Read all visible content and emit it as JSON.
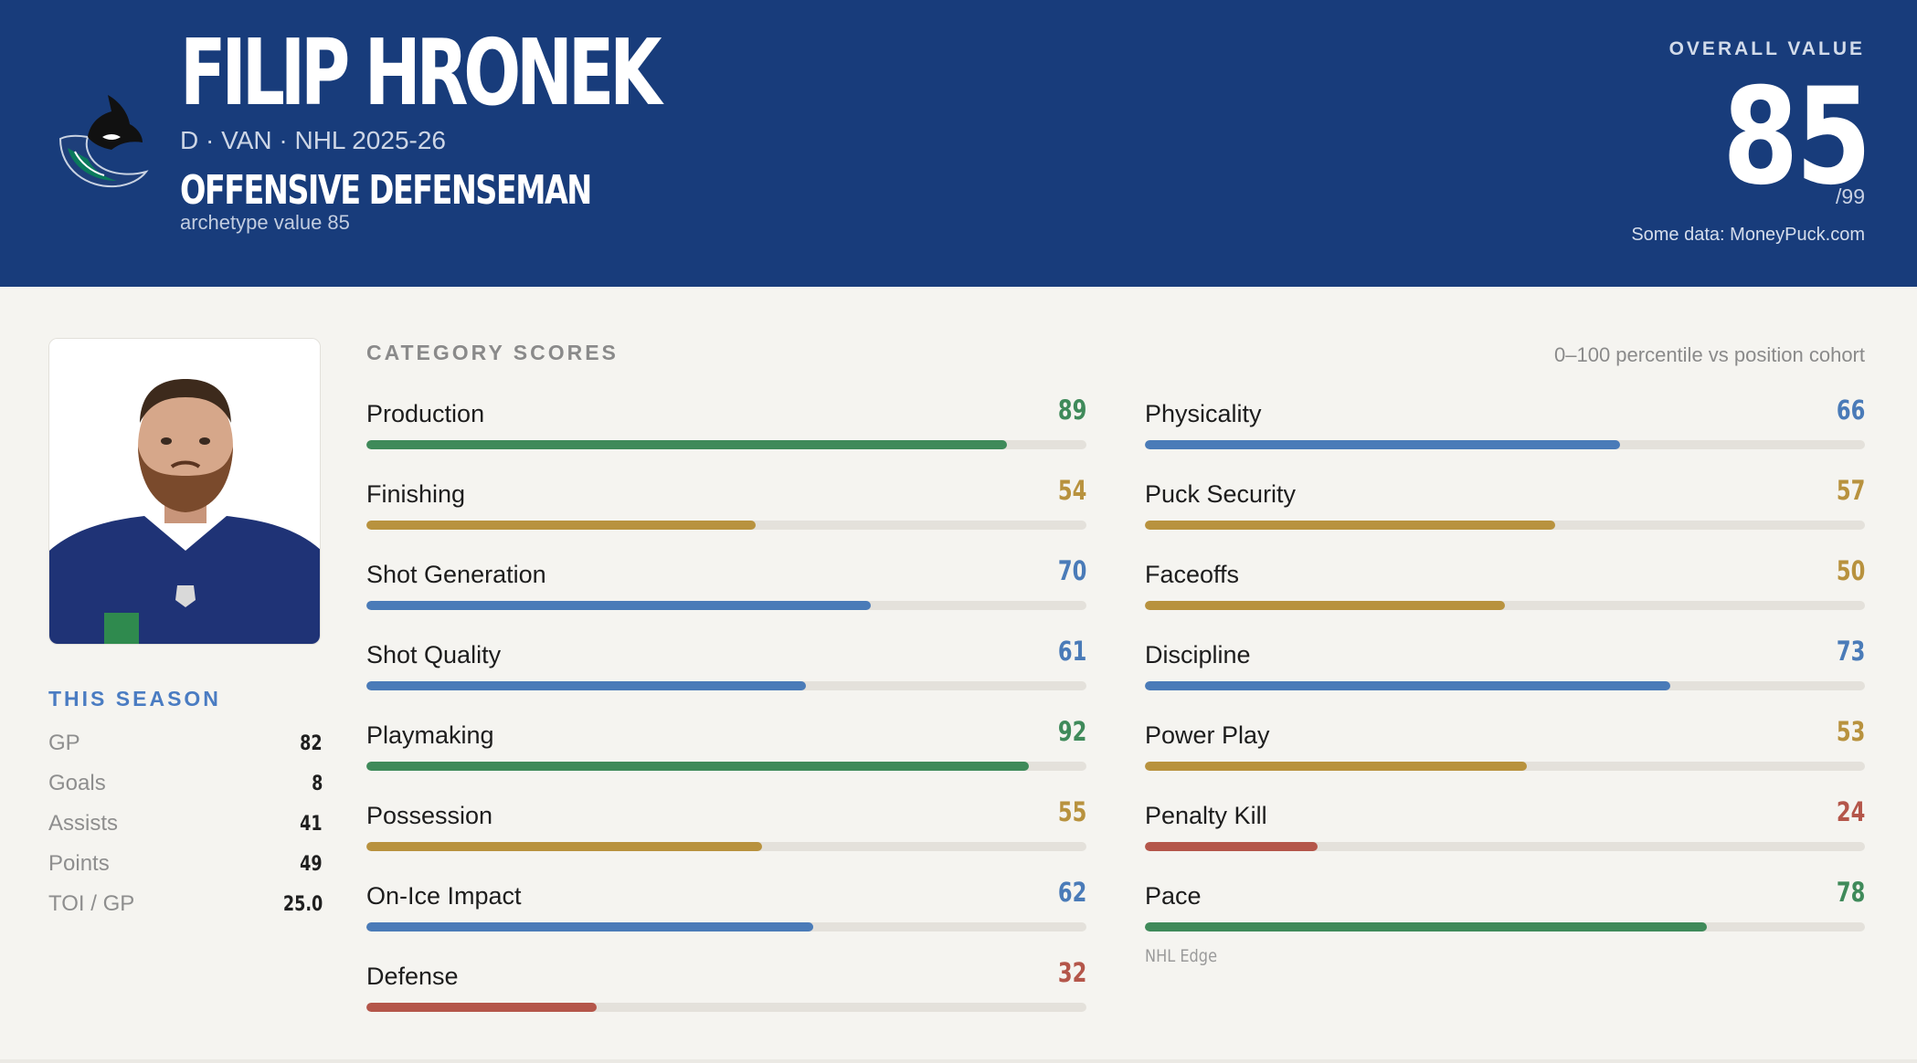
{
  "header": {
    "player_name": "FILIP HRONEK",
    "meta": "D · VAN · NHL 2025-26",
    "archetype": "OFFENSIVE DEFENSEMAN",
    "archetype_sub": "archetype value 85",
    "team_logo_icon": "orca-logo-icon",
    "overall_label": "OVERALL VALUE",
    "overall_value": "85",
    "overall_max": "/99",
    "data_source": "Some data: MoneyPuck.com"
  },
  "season": {
    "title": "THIS SEASON",
    "stats": [
      {
        "label": "GP",
        "value": "82"
      },
      {
        "label": "Goals",
        "value": "8"
      },
      {
        "label": "Assists",
        "value": "41"
      },
      {
        "label": "Points",
        "value": "49"
      },
      {
        "label": "TOI / GP",
        "value": "25.0"
      }
    ]
  },
  "categories": {
    "title": "CATEGORY SCORES",
    "note": "0–100 percentile vs position cohort",
    "left": [
      {
        "label": "Production",
        "value": 89
      },
      {
        "label": "Finishing",
        "value": 54
      },
      {
        "label": "Shot Generation",
        "value": 70
      },
      {
        "label": "Shot Quality",
        "value": 61
      },
      {
        "label": "Playmaking",
        "value": 92
      },
      {
        "label": "Possession",
        "value": 55
      },
      {
        "label": "On-Ice Impact",
        "value": 62
      },
      {
        "label": "Defense",
        "value": 32
      }
    ],
    "right": [
      {
        "label": "Physicality",
        "value": 66
      },
      {
        "label": "Puck Security",
        "value": 57
      },
      {
        "label": "Faceoffs",
        "value": 50
      },
      {
        "label": "Discipline",
        "value": 73
      },
      {
        "label": "Power Play",
        "value": 53
      },
      {
        "label": "Penalty Kill",
        "value": 24
      },
      {
        "label": "Pace",
        "value": 78,
        "sub": "NHL Edge"
      }
    ]
  },
  "colors": {
    "header_bg": "#183c7b",
    "high": "#3f8a5a",
    "mid_high": "#4a7bb8",
    "mid": "#b8923e",
    "low": "#b4564a"
  }
}
